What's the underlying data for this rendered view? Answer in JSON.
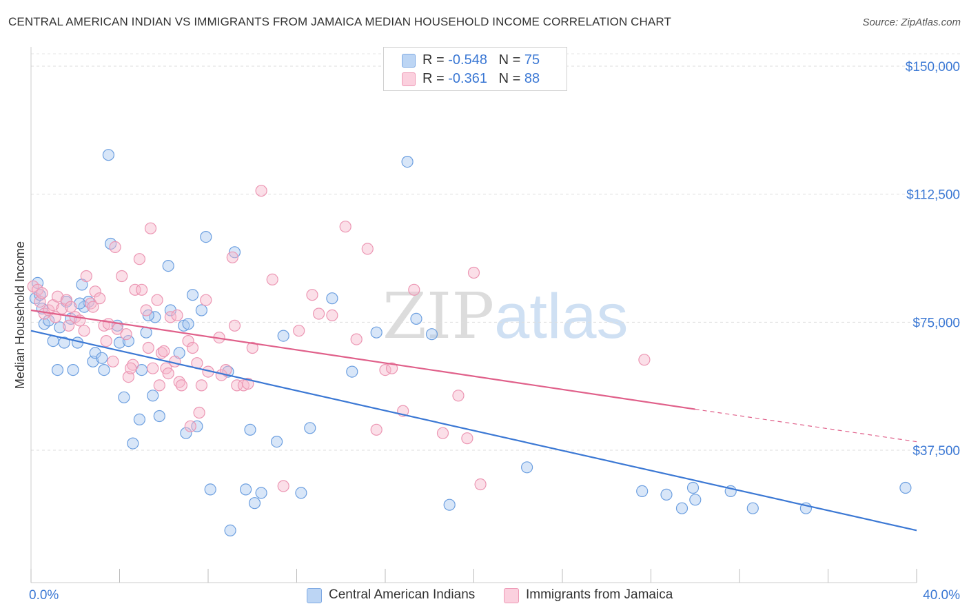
{
  "title": "CENTRAL AMERICAN INDIAN VS IMMIGRANTS FROM JAMAICA MEDIAN HOUSEHOLD INCOME CORRELATION CHART",
  "source": "Source: ZipAtlas.com",
  "watermark": {
    "part1": "ZIP",
    "part2": "atlas"
  },
  "legend_top": [
    {
      "r_label": "R = ",
      "r_value": "-0.548",
      "n_label": "N = ",
      "n_value": "75",
      "color": "#a9c8f0"
    },
    {
      "r_label": "R = ",
      "r_value": " -0.361",
      "n_label": "N = ",
      "n_value": "88",
      "color": "#f6b8cc"
    }
  ],
  "chart_data": {
    "type": "scatter",
    "ylabel": "Median Household Income",
    "xlim": [
      0,
      40
    ],
    "ylim": [
      0,
      160000
    ],
    "x_tick_labels": [
      "0.0%",
      "40.0%"
    ],
    "y_ticks": [
      {
        "value": 37500,
        "label": "$37,500"
      },
      {
        "value": 75000,
        "label": "$75,000"
      },
      {
        "value": 112500,
        "label": "$112,500"
      },
      {
        "value": 150000,
        "label": "$150,000"
      }
    ],
    "grid": "horizontal dashed",
    "legend_placement": "top-center and bottom",
    "series": [
      {
        "name": "Central American Indians",
        "color": "#3b78d4",
        "fill": "#a9c8f0",
        "trend": {
          "x0": 0,
          "y0": 72500,
          "x1": 40,
          "y1": 14000
        },
        "points": [
          [
            0.2,
            82000
          ],
          [
            0.5,
            79000
          ],
          [
            0.6,
            74500
          ],
          [
            0.8,
            75500
          ],
          [
            1.0,
            69500
          ],
          [
            1.2,
            61000
          ],
          [
            1.5,
            69000
          ],
          [
            1.6,
            81000
          ],
          [
            1.8,
            76000
          ],
          [
            1.9,
            61000
          ],
          [
            2.1,
            69000
          ],
          [
            2.3,
            86000
          ],
          [
            2.4,
            79500
          ],
          [
            2.6,
            81000
          ],
          [
            2.8,
            63500
          ],
          [
            2.9,
            66000
          ],
          [
            3.2,
            64500
          ],
          [
            3.3,
            61000
          ],
          [
            3.5,
            124000
          ],
          [
            3.6,
            98000
          ],
          [
            3.9,
            74000
          ],
          [
            4.0,
            69000
          ],
          [
            4.2,
            53000
          ],
          [
            4.4,
            69500
          ],
          [
            4.6,
            39500
          ],
          [
            4.9,
            46500
          ],
          [
            5.0,
            61000
          ],
          [
            5.2,
            72000
          ],
          [
            5.5,
            53500
          ],
          [
            5.6,
            76500
          ],
          [
            5.8,
            47500
          ],
          [
            6.2,
            91500
          ],
          [
            6.3,
            78500
          ],
          [
            6.7,
            66000
          ],
          [
            6.9,
            74000
          ],
          [
            7.0,
            42500
          ],
          [
            7.3,
            83000
          ],
          [
            7.5,
            44500
          ],
          [
            7.7,
            78500
          ],
          [
            7.9,
            100000
          ],
          [
            8.1,
            26000
          ],
          [
            9.2,
            95500
          ],
          [
            8.9,
            60500
          ],
          [
            9.0,
            14000
          ],
          [
            9.7,
            26000
          ],
          [
            9.9,
            43500
          ],
          [
            10.1,
            22000
          ],
          [
            10.4,
            25000
          ],
          [
            11.1,
            40000
          ],
          [
            11.4,
            71000
          ],
          [
            12.2,
            25000
          ],
          [
            12.6,
            44000
          ],
          [
            13.6,
            82000
          ],
          [
            14.5,
            60500
          ],
          [
            15.6,
            72000
          ],
          [
            17.0,
            122000
          ],
          [
            17.4,
            76000
          ],
          [
            18.1,
            71500
          ],
          [
            18.9,
            21500
          ],
          [
            22.4,
            32500
          ],
          [
            27.6,
            25500
          ],
          [
            28.7,
            24500
          ],
          [
            29.4,
            20500
          ],
          [
            29.9,
            26500
          ],
          [
            30.0,
            23000
          ],
          [
            31.6,
            25500
          ],
          [
            32.6,
            20500
          ],
          [
            35.0,
            20500
          ],
          [
            39.5,
            26500
          ],
          [
            0.3,
            86500
          ],
          [
            0.4,
            83000
          ],
          [
            1.3,
            73500
          ],
          [
            2.2,
            80500
          ],
          [
            5.3,
            77000
          ],
          [
            7.1,
            74500
          ]
        ]
      },
      {
        "name": "Immigrants from Jamaica",
        "color": "#e0608a",
        "fill": "#f6b8cc",
        "trend": {
          "x0": 0,
          "y0": 78500,
          "x1": 30,
          "y1": 49500,
          "dash_x1": 40,
          "dash_y1": 40000
        },
        "points": [
          [
            0.1,
            85500
          ],
          [
            0.3,
            84500
          ],
          [
            0.4,
            81000
          ],
          [
            0.6,
            77500
          ],
          [
            0.8,
            78500
          ],
          [
            1.0,
            80000
          ],
          [
            1.2,
            82500
          ],
          [
            1.4,
            79000
          ],
          [
            1.6,
            81500
          ],
          [
            1.8,
            79500
          ],
          [
            2.0,
            76500
          ],
          [
            2.2,
            75500
          ],
          [
            2.4,
            72500
          ],
          [
            2.5,
            88500
          ],
          [
            2.7,
            80500
          ],
          [
            2.9,
            84000
          ],
          [
            3.1,
            82000
          ],
          [
            3.3,
            74000
          ],
          [
            3.5,
            74500
          ],
          [
            3.7,
            63500
          ],
          [
            3.8,
            97000
          ],
          [
            3.9,
            73000
          ],
          [
            4.1,
            88500
          ],
          [
            4.3,
            71500
          ],
          [
            4.4,
            59000
          ],
          [
            4.6,
            62500
          ],
          [
            4.7,
            84500
          ],
          [
            4.9,
            93500
          ],
          [
            5.0,
            84500
          ],
          [
            5.2,
            78500
          ],
          [
            5.3,
            67500
          ],
          [
            5.4,
            102500
          ],
          [
            5.5,
            61500
          ],
          [
            5.7,
            81500
          ],
          [
            5.8,
            56500
          ],
          [
            5.9,
            66000
          ],
          [
            6.1,
            61500
          ],
          [
            6.2,
            60000
          ],
          [
            6.3,
            76500
          ],
          [
            6.5,
            63500
          ],
          [
            6.6,
            77000
          ],
          [
            6.7,
            57500
          ],
          [
            6.8,
            56500
          ],
          [
            7.1,
            69500
          ],
          [
            7.2,
            44500
          ],
          [
            7.3,
            67500
          ],
          [
            7.5,
            63000
          ],
          [
            7.6,
            48500
          ],
          [
            7.7,
            56500
          ],
          [
            7.9,
            81500
          ],
          [
            8.5,
            70500
          ],
          [
            8.6,
            59500
          ],
          [
            8.8,
            61000
          ],
          [
            9.1,
            94000
          ],
          [
            9.2,
            74000
          ],
          [
            9.3,
            56500
          ],
          [
            9.6,
            56500
          ],
          [
            9.8,
            57000
          ],
          [
            10.0,
            67500
          ],
          [
            10.4,
            113500
          ],
          [
            10.9,
            87500
          ],
          [
            11.4,
            27000
          ],
          [
            12.1,
            72500
          ],
          [
            12.7,
            83000
          ],
          [
            13.0,
            77500
          ],
          [
            13.6,
            77000
          ],
          [
            14.2,
            103000
          ],
          [
            14.7,
            70000
          ],
          [
            15.2,
            96500
          ],
          [
            15.6,
            43500
          ],
          [
            16.0,
            61000
          ],
          [
            16.3,
            61500
          ],
          [
            16.8,
            49000
          ],
          [
            17.3,
            84500
          ],
          [
            18.6,
            42500
          ],
          [
            19.3,
            53500
          ],
          [
            19.7,
            41000
          ],
          [
            20.0,
            89500
          ],
          [
            20.3,
            27500
          ],
          [
            27.7,
            64000
          ],
          [
            0.5,
            83500
          ],
          [
            1.1,
            76500
          ],
          [
            1.7,
            74000
          ],
          [
            2.8,
            79500
          ],
          [
            3.4,
            69500
          ],
          [
            4.5,
            61500
          ],
          [
            6.0,
            66500
          ],
          [
            8.0,
            60500
          ]
        ]
      }
    ]
  },
  "legend_bottom": [
    {
      "label": "Central American Indians",
      "color": "#a9c8f0"
    },
    {
      "label": "Immigrants from Jamaica",
      "color": "#f6b8cc"
    }
  ]
}
